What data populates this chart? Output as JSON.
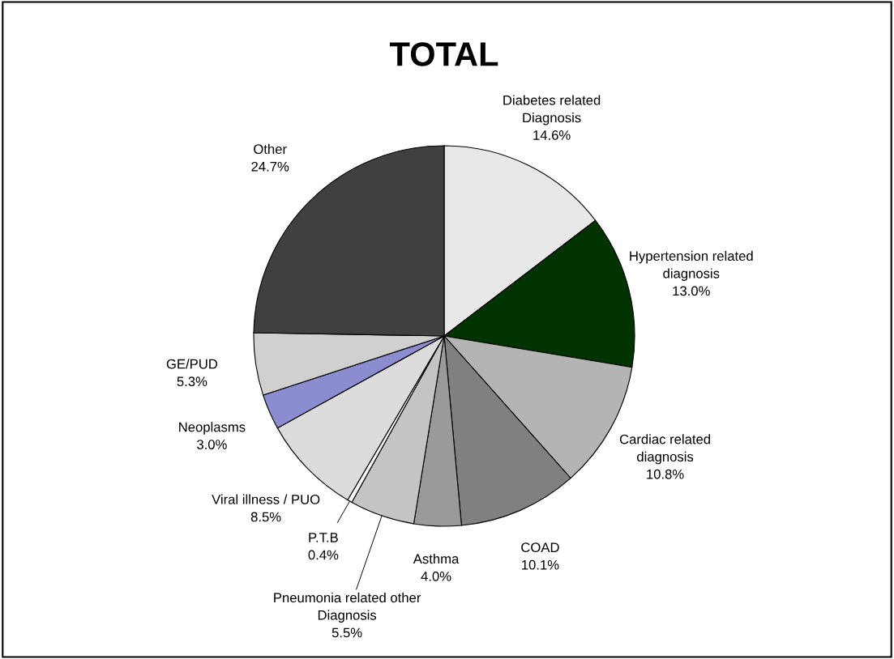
{
  "chart_data": {
    "type": "pie",
    "title": "TOTAL",
    "categories": [
      "Diabetes related\nDiagnosis",
      "Hypertension related\ndiagnosis",
      "Cardiac related\ndiagnosis",
      "COAD",
      "Asthma",
      "Pneumonia related other\nDiagnosis",
      "P.T.B",
      "Viral illness / PUO",
      "Neoplasms",
      "GE/PUD",
      "Other"
    ],
    "values": [
      14.6,
      13.0,
      10.8,
      10.1,
      4.0,
      5.5,
      0.4,
      8.5,
      3.0,
      5.3,
      24.7
    ],
    "value_labels": [
      "14.6%",
      "13.0%",
      "10.8%",
      "10.1%",
      "4.0%",
      "5.5%",
      "0.4%",
      "8.5%",
      "3.0%",
      "5.3%",
      "24.7%"
    ],
    "colors": [
      "#e8e8e8",
      "#003300",
      "#b4b4b4",
      "#808080",
      "#9a9a9a",
      "#c4c4c4",
      "#f4f4f4",
      "#dcdcdc",
      "#8c8cd0",
      "#d0d0d0",
      "#404040"
    ]
  }
}
